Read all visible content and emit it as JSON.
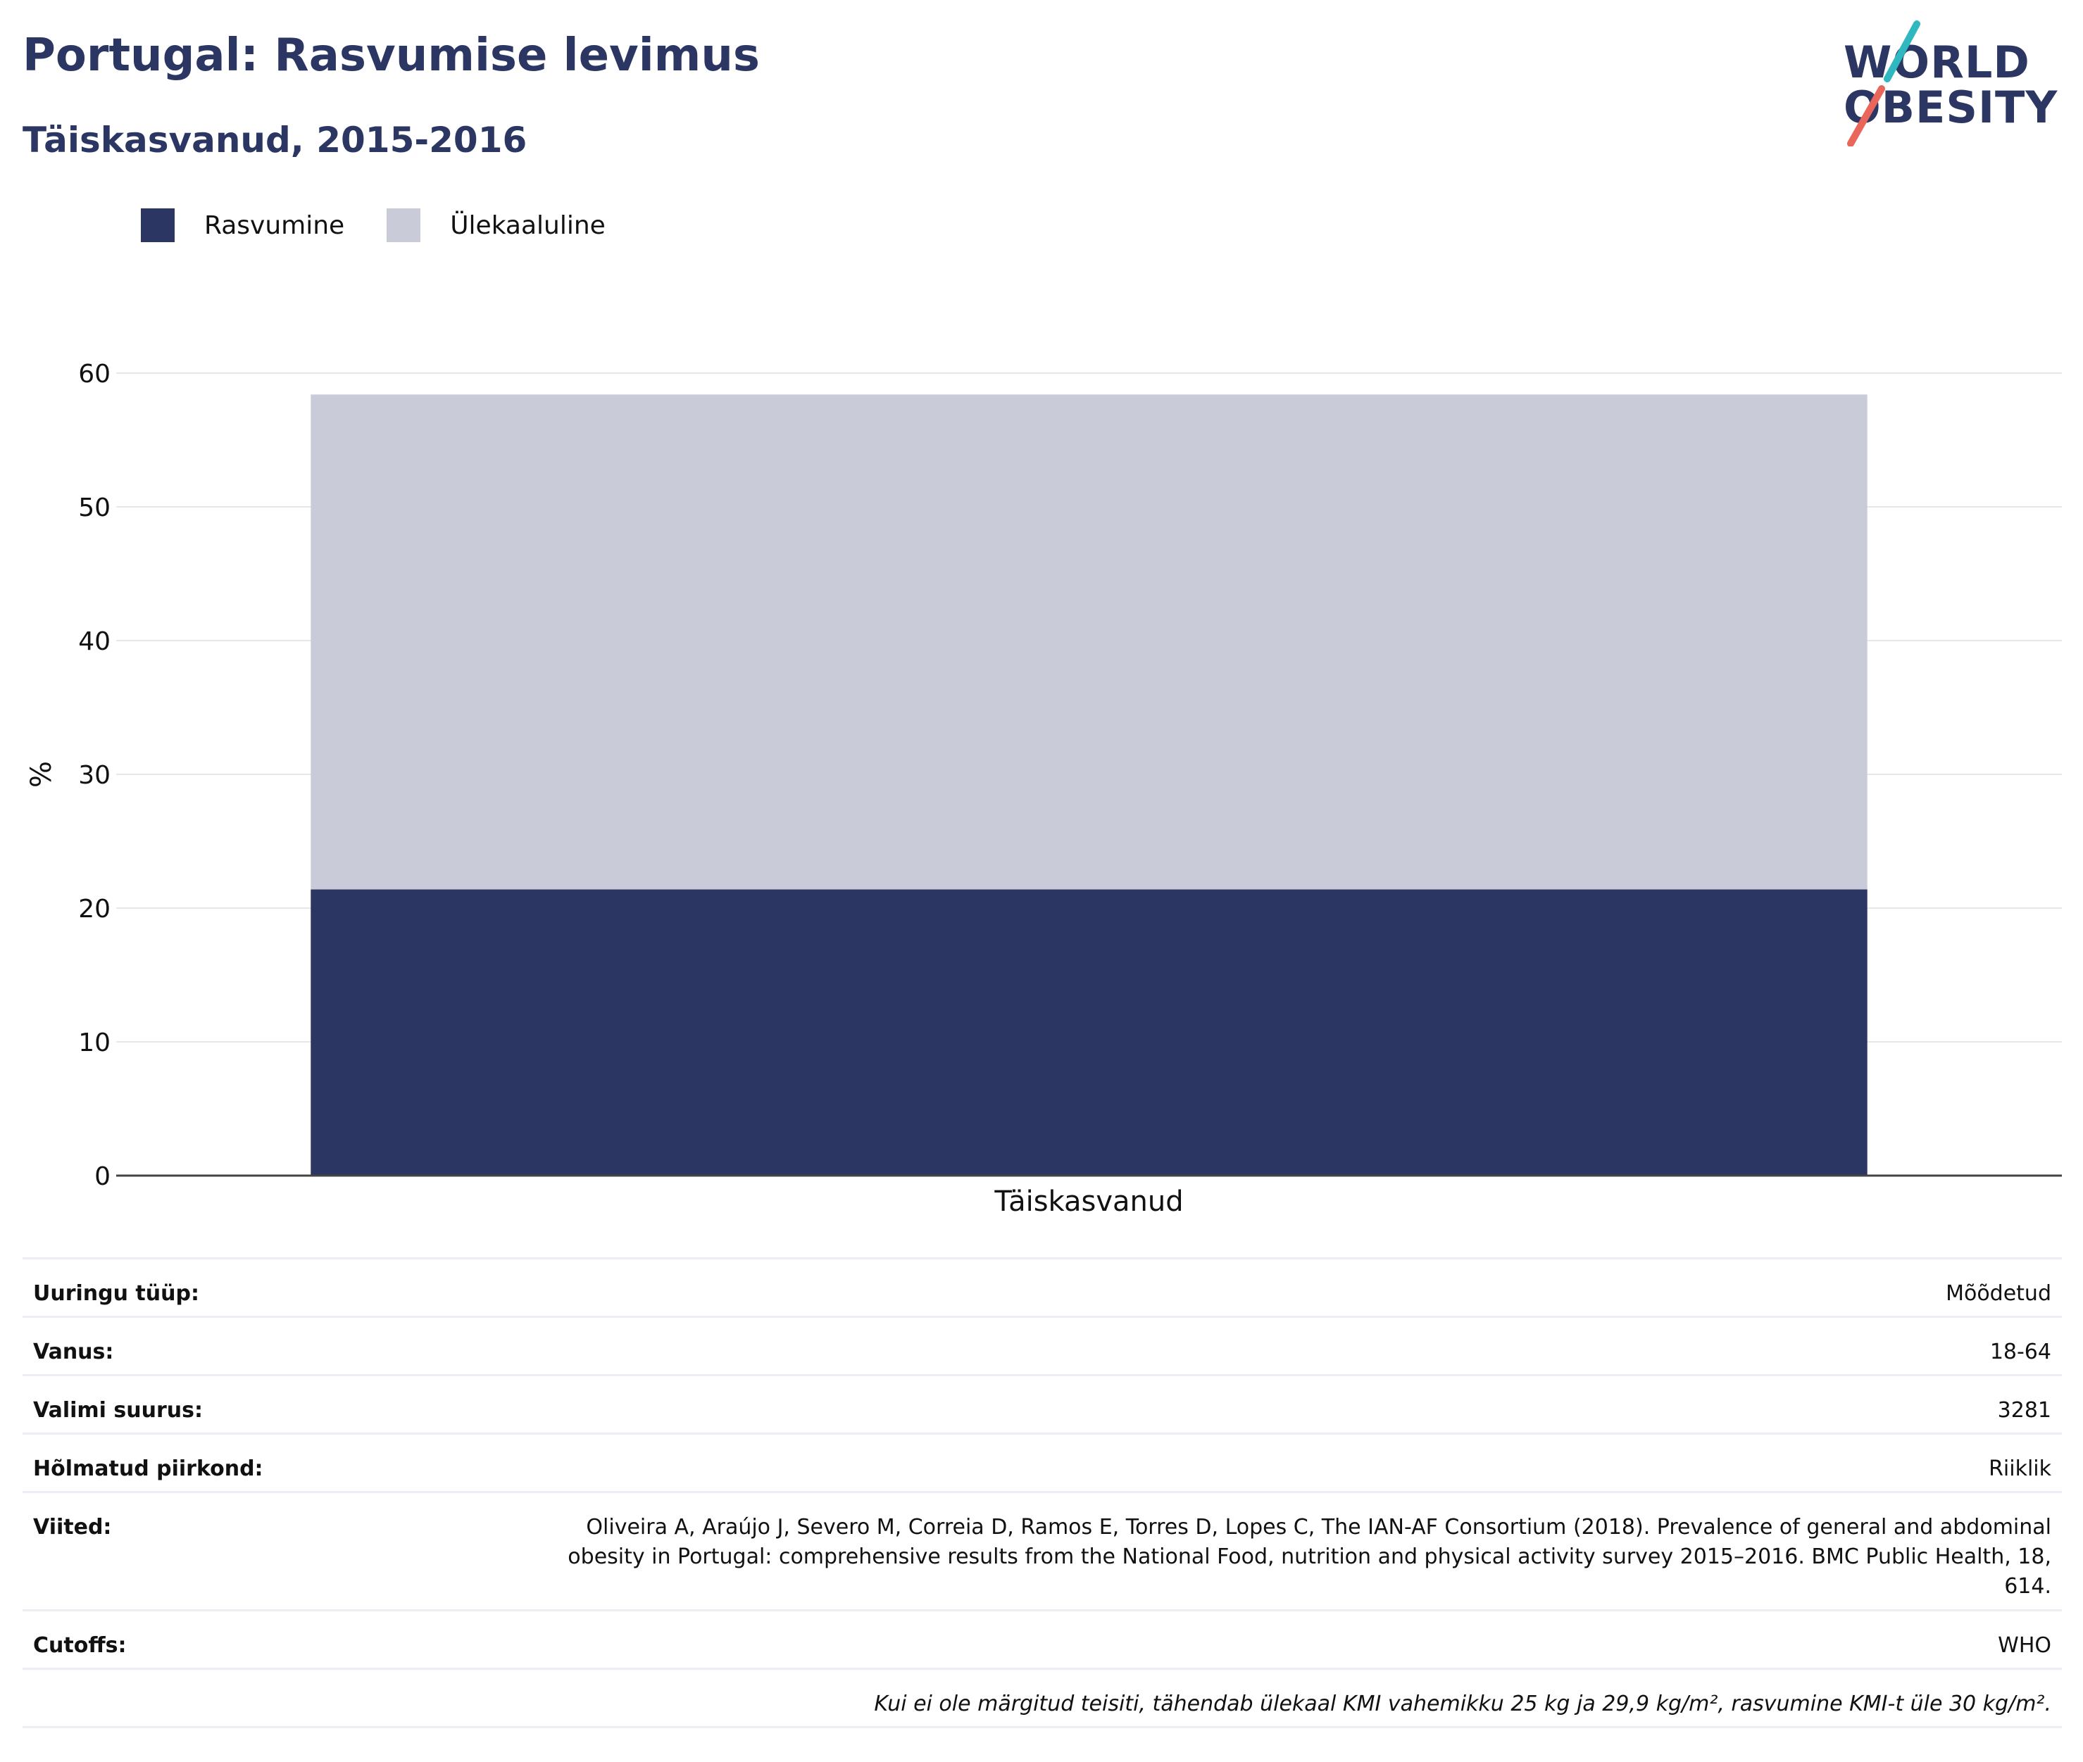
{
  "header": {
    "title": "Portugal: Rasvumise levimus",
    "subtitle": "Täiskasvanud, 2015-2016"
  },
  "logo": {
    "line1": "WORLD",
    "line2": "OBESITY",
    "colors": {
      "text": "#2b3663",
      "slash_top": "#2fb8bf",
      "slash_bottom": "#e8675a"
    }
  },
  "chart_data": {
    "type": "bar",
    "stacked": true,
    "categories": [
      "Täiskasvanud"
    ],
    "series": [
      {
        "name": "Rasvumine",
        "values": [
          21.4
        ],
        "color": "#2b3663"
      },
      {
        "name": "Ülekaaluline",
        "values": [
          37.0
        ],
        "color": "#c9ccd8"
      }
    ],
    "ylabel": "%",
    "xlabel": "",
    "ylim": [
      0,
      60
    ],
    "yticks": [
      0,
      10,
      20,
      30,
      40,
      50,
      60
    ],
    "grid": true,
    "legend_position": "top-left"
  },
  "meta": {
    "rows": [
      {
        "label": "Uuringu tüüp:",
        "value": "Mõõdetud"
      },
      {
        "label": "Vanus:",
        "value": "18-64"
      },
      {
        "label": "Valimi suurus:",
        "value": "3281"
      },
      {
        "label": "Hõlmatud piirkond:",
        "value": "Riiklik"
      },
      {
        "label": "Viited:",
        "value": "Oliveira A, Araújo J, Severo M, Correia D, Ramos E, Torres D, Lopes C, The IAN-AF Consortium (2018). Prevalence of general and abdominal obesity in Portugal: comprehensive results from the National Food, nutrition and physical activity survey 2015–2016. BMC Public Health, 18, 614."
      },
      {
        "label": "Cutoffs:",
        "value": "WHO"
      }
    ],
    "note": "Kui ei ole märgitud teisiti, tähendab ülekaal KMI vahemikku 25 kg ja 29,9 kg/m², rasvumine KMI-t üle 30 kg/m²."
  }
}
